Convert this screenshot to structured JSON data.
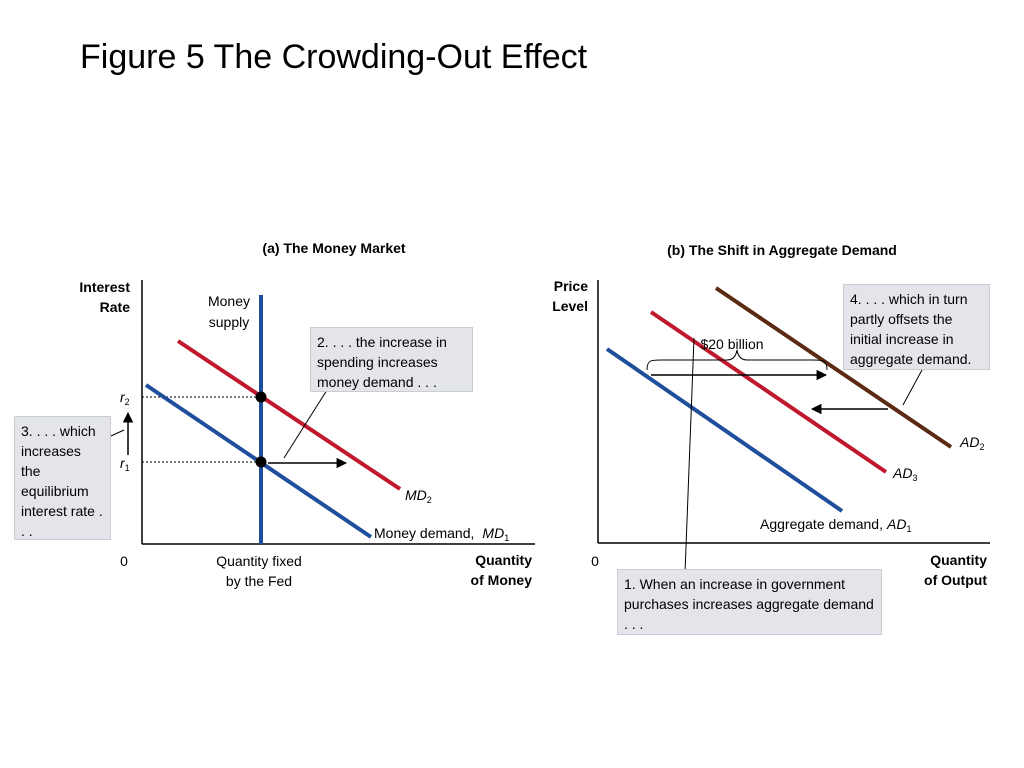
{
  "title": "Figure 5 The Crowding-Out Effect",
  "panel_a": {
    "title": "(a) The Money Market",
    "y_axis_label_1": "Interest",
    "y_axis_label_2": "Rate",
    "x_axis_label_1": "Quantity",
    "x_axis_label_2": "of Money",
    "origin": "0",
    "x_tick_1": "Quantity fixed",
    "x_tick_2": "by the Fed",
    "r2_base": "r",
    "r2_sub": "2",
    "r1_base": "r",
    "r1_sub": "1",
    "supply_label_1": "Money",
    "supply_label_2": "supply",
    "md1_text": "Money demand,",
    "md1_base": "MD",
    "md1_sub": "1",
    "md2_base": "MD",
    "md2_sub": "2",
    "callout_2": "2. . . . the increase in spending increases money demand . . .",
    "callout_3": "3. . . . which increases the equilibrium interest rate . . ."
  },
  "panel_b": {
    "title": "(b) The Shift in Aggregate Demand",
    "y_axis_label_1": "Price",
    "y_axis_label_2": "Level",
    "x_axis_label_1": "Quantity",
    "x_axis_label_2": "of Output",
    "origin": "0",
    "billion_label": "$20 billion",
    "ad1_text": "Aggregate demand,",
    "ad1_base": "AD",
    "ad1_sub": "1",
    "ad2_base": "AD",
    "ad2_sub": "2",
    "ad3_base": "AD",
    "ad3_sub": "3",
    "callout_1": "1. When an increase in government purchases increases aggregate demand . . .",
    "callout_4": "4. . . . which in turn partly offsets the initial increase in aggregate demand."
  },
  "colors": {
    "blue": "#1f4f9c",
    "red": "#c0182c",
    "brown": "#5a2a12",
    "callout_bg": "#e3e5ea"
  }
}
